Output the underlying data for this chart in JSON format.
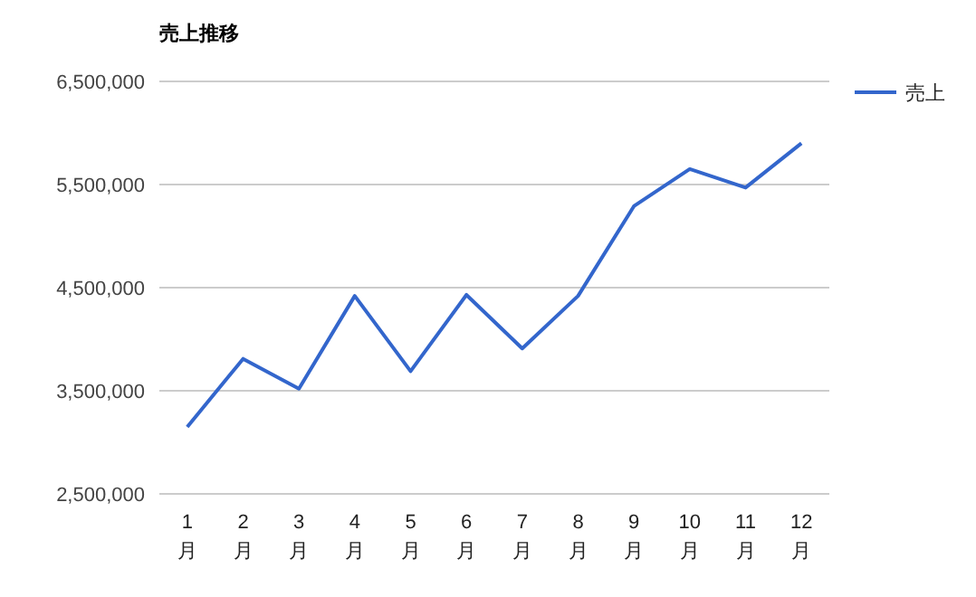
{
  "chart_data": {
    "type": "line",
    "title": "売上推移",
    "categories": [
      "1月",
      "2月",
      "3月",
      "4月",
      "5月",
      "6月",
      "7月",
      "8月",
      "9月",
      "10月",
      "11月",
      "12月"
    ],
    "series": [
      {
        "name": "売上",
        "color": "#3366cc",
        "values": [
          3150000,
          3810000,
          3520000,
          4420000,
          3690000,
          4430000,
          3910000,
          4420000,
          5290000,
          5650000,
          5470000,
          5900000
        ]
      }
    ],
    "ylim": [
      2500000,
      6500000
    ],
    "yticks": [
      {
        "value": 2500000,
        "label": "2,500,000"
      },
      {
        "value": 3500000,
        "label": "3,500,000"
      },
      {
        "value": 4500000,
        "label": "4,500,000"
      },
      {
        "value": 5500000,
        "label": "5,500,000"
      },
      {
        "value": 6500000,
        "label": "6,500,000"
      }
    ],
    "grid": "y",
    "legend": "top right",
    "marker": "none"
  }
}
